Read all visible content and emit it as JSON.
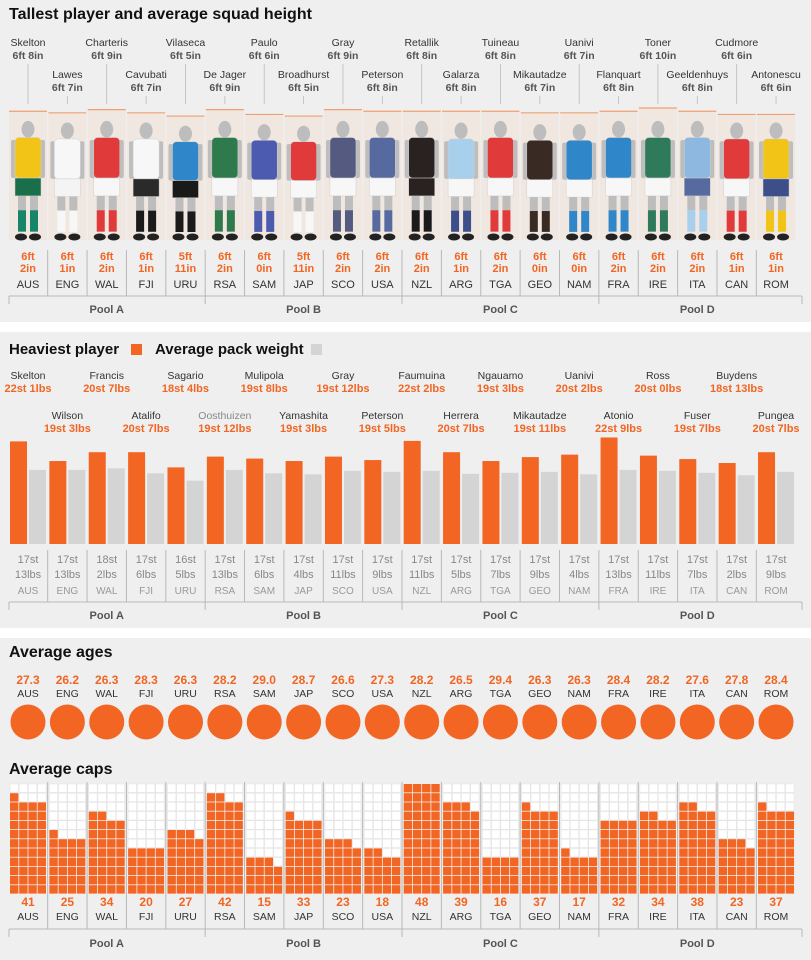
{
  "colors": {
    "orange": "#f26522",
    "grey": "#d4d4d4",
    "panel_bg": "#efefef",
    "silhouette": "#bdbdbd",
    "ref_line": "#f0a070"
  },
  "pools": [
    "Pool A",
    "Pool B",
    "Pool C",
    "Pool D"
  ],
  "height_section": {
    "title": "Tallest player and average squad height",
    "teams": [
      {
        "team": "AUS",
        "player": "Skelton",
        "player_height": "6ft 8in",
        "avg": [
          "6ft",
          "2in"
        ],
        "pool": 0,
        "shirt": "#f2c417",
        "shorts": "#1a6e4a",
        "socks": "#16856a"
      },
      {
        "team": "ENG",
        "player": "Lawes",
        "player_height": "6ft 7in",
        "avg": [
          "6ft",
          "1in"
        ],
        "pool": 0,
        "shirt": "#f7f7f7",
        "shorts": "#f4f4f4",
        "socks": "#f7f7f7"
      },
      {
        "team": "WAL",
        "player": "Charteris",
        "player_height": "6ft 9in",
        "avg": [
          "6ft",
          "2in"
        ],
        "pool": 0,
        "shirt": "#e03a3a",
        "shorts": "#f7f7f7",
        "socks": "#e03a3a"
      },
      {
        "team": "FJI",
        "player": "Cavubati",
        "player_height": "6ft 7in",
        "avg": [
          "6ft",
          "1in"
        ],
        "pool": 0,
        "shirt": "#f7f7f7",
        "shorts": "#2a2a2a",
        "socks": "#1a1a1a"
      },
      {
        "team": "URU",
        "player": "Vilaseca",
        "player_height": "6ft 5in",
        "avg": [
          "5ft",
          "11in"
        ],
        "pool": 0,
        "shirt": "#2f86c8",
        "shorts": "#1a1a1a",
        "socks": "#1a1a1a"
      },
      {
        "team": "RSA",
        "player": "De Jager",
        "player_height": "6ft 9in",
        "avg": [
          "6ft",
          "2in"
        ],
        "pool": 1,
        "shirt": "#2e7a4c",
        "shorts": "#f7f7f7",
        "socks": "#2e7a4c"
      },
      {
        "team": "SAM",
        "player": "Paulo",
        "player_height": "6ft 6in",
        "avg": [
          "6ft",
          "0in"
        ],
        "pool": 1,
        "shirt": "#4c5bb0",
        "shorts": "#f7f7f7",
        "socks": "#4c5bb0"
      },
      {
        "team": "JAP",
        "player": "Broadhurst",
        "player_height": "6ft 5in",
        "avg": [
          "5ft",
          "11in"
        ],
        "pool": 1,
        "shirt": "#e03a3a",
        "shorts": "#f7f7f7",
        "socks": "#f7f7f7"
      },
      {
        "team": "SCO",
        "player": "Gray",
        "player_height": "6ft 9in",
        "avg": [
          "6ft",
          "2in"
        ],
        "pool": 1,
        "shirt": "#545a80",
        "shorts": "#f7f7f7",
        "socks": "#545a80"
      },
      {
        "team": "USA",
        "player": "Peterson",
        "player_height": "6ft 8in",
        "avg": [
          "6ft",
          "2in"
        ],
        "pool": 1,
        "shirt": "#566aa0",
        "shorts": "#f7f7f7",
        "socks": "#566aa0"
      },
      {
        "team": "NZL",
        "player": "Retallik",
        "player_height": "6ft 8in",
        "avg": [
          "6ft",
          "2in"
        ],
        "pool": 2,
        "shirt": "#2a2220",
        "shorts": "#2a2220",
        "socks": "#1a1a1a"
      },
      {
        "team": "ARG",
        "player": "Galarza",
        "player_height": "6ft 8in",
        "avg": [
          "6ft",
          "1in"
        ],
        "pool": 2,
        "shirt": "#a8d0ec",
        "shorts": "#f7f7f7",
        "socks": "#3d4f8a"
      },
      {
        "team": "TGA",
        "player": "Tuineau",
        "player_height": "6ft 8in",
        "avg": [
          "6ft",
          "2in"
        ],
        "pool": 2,
        "shirt": "#e03a3a",
        "shorts": "#f7f7f7",
        "socks": "#e03a3a"
      },
      {
        "team": "GEO",
        "player": "Mikautadze",
        "player_height": "6ft 7in",
        "avg": [
          "6ft",
          "0in"
        ],
        "pool": 2,
        "shirt": "#3a2a24",
        "shorts": "#f7f7f7",
        "socks": "#3a2a24"
      },
      {
        "team": "NAM",
        "player": "Uanivi",
        "player_height": "6ft 7in",
        "avg": [
          "6ft",
          "0in"
        ],
        "pool": 2,
        "shirt": "#2f86c8",
        "shorts": "#f7f7f7",
        "socks": "#2f86c8"
      },
      {
        "team": "FRA",
        "player": "Flanquart",
        "player_height": "6ft 8in",
        "avg": [
          "6ft",
          "2in"
        ],
        "pool": 3,
        "shirt": "#2f86c8",
        "shorts": "#f7f7f7",
        "socks": "#2f86c8"
      },
      {
        "team": "IRE",
        "player": "Toner",
        "player_height": "6ft 10in",
        "avg": [
          "6ft",
          "2in"
        ],
        "pool": 3,
        "shirt": "#2e7a5a",
        "shorts": "#f7f7f7",
        "socks": "#2e7a5a"
      },
      {
        "team": "ITA",
        "player": "Geeldenhuys",
        "player_height": "6ft 8in",
        "avg": [
          "6ft",
          "2in"
        ],
        "pool": 3,
        "shirt": "#8fb8e0",
        "shorts": "#566aa0",
        "socks": "#a8d0ec"
      },
      {
        "team": "CAN",
        "player": "Cudmore",
        "player_height": "6ft 6in",
        "avg": [
          "6ft",
          "1in"
        ],
        "pool": 3,
        "shirt": "#e03a3a",
        "shorts": "#f7f7f7",
        "socks": "#e03a3a"
      },
      {
        "team": "ROM",
        "player": "Antonescu",
        "player_height": "6ft 6in",
        "avg": [
          "6ft",
          "1in"
        ],
        "pool": 3,
        "shirt": "#f2c417",
        "shorts": "#3d4f8a",
        "socks": "#f2c417"
      }
    ]
  },
  "weight_section": {
    "legend_heaviest": "Heaviest player",
    "legend_average": "Average pack weight",
    "teams": [
      {
        "team": "AUS",
        "player": "Skelton",
        "heaviest": "22st 1lbs",
        "avg": [
          "17st",
          "13lbs"
        ]
      },
      {
        "team": "ENG",
        "player": "Wilson",
        "heaviest": "19st 3lbs",
        "avg": [
          "17st",
          "13lbs"
        ]
      },
      {
        "team": "WAL",
        "player": "Francis",
        "heaviest": "20st 7lbs",
        "avg": [
          "18st",
          "2lbs"
        ]
      },
      {
        "team": "FJI",
        "player": "Atalifo",
        "heaviest": "20st 7lbs",
        "avg": [
          "17st",
          "6lbs"
        ]
      },
      {
        "team": "URU",
        "player": "Sagario",
        "heaviest": "18st 4lbs",
        "avg": [
          "16st",
          "5lbs"
        ]
      },
      {
        "team": "RSA",
        "player": "Oosthuizen",
        "heaviest": "19st 12lbs",
        "avg": [
          "17st",
          "13lbs"
        ]
      },
      {
        "team": "SAM",
        "player": "Mulipola",
        "heaviest": "19st 8lbs",
        "avg": [
          "17st",
          "6lbs"
        ]
      },
      {
        "team": "JAP",
        "player": "Yamashita",
        "heaviest": "19st 3lbs",
        "avg": [
          "17st",
          "4lbs"
        ]
      },
      {
        "team": "SCO",
        "player": "Gray",
        "heaviest": "19st 12lbs",
        "avg": [
          "17st",
          "11lbs"
        ]
      },
      {
        "team": "USA",
        "player": "Peterson",
        "heaviest": "19st 5lbs",
        "avg": [
          "17st",
          "9lbs"
        ]
      },
      {
        "team": "NZL",
        "player": "Faumuina",
        "heaviest": "22st 2lbs",
        "avg": [
          "17st",
          "11lbs"
        ]
      },
      {
        "team": "ARG",
        "player": "Herrera",
        "heaviest": "20st 7lbs",
        "avg": [
          "17st",
          "5lbs"
        ]
      },
      {
        "team": "TGA",
        "player": "Ngauamo",
        "heaviest": "19st 3lbs",
        "avg": [
          "17st",
          "7lbs"
        ]
      },
      {
        "team": "GEO",
        "player": "Mikautadze",
        "heaviest": "19st 11lbs",
        "avg": [
          "17st",
          "9lbs"
        ]
      },
      {
        "team": "NAM",
        "player": "Uanivi",
        "heaviest": "20st 2lbs",
        "avg": [
          "17st",
          "4lbs"
        ]
      },
      {
        "team": "FRA",
        "player": "Atonio",
        "heaviest": "22st 9lbs",
        "avg": [
          "17st",
          "13lbs"
        ]
      },
      {
        "team": "IRE",
        "player": "Ross",
        "heaviest": "20st 0lbs",
        "avg": [
          "17st",
          "11lbs"
        ]
      },
      {
        "team": "ITA",
        "player": "Fuser",
        "heaviest": "19st 7lbs",
        "avg": [
          "17st",
          "7lbs"
        ]
      },
      {
        "team": "CAN",
        "player": "Buydens",
        "heaviest": "18st 13lbs",
        "avg": [
          "17st",
          "2lbs"
        ]
      },
      {
        "team": "ROM",
        "player": "Pungea",
        "heaviest": "20st 7lbs",
        "avg": [
          "17st",
          "9lbs"
        ]
      }
    ]
  },
  "ages_section": {
    "title": "Average ages",
    "values": [
      "27.3",
      "26.2",
      "26.3",
      "28.3",
      "26.3",
      "28.2",
      "29.0",
      "28.7",
      "26.6",
      "27.3",
      "28.2",
      "26.5",
      "29.4",
      "26.3",
      "26.3",
      "28.4",
      "28.2",
      "27.6",
      "27.8",
      "28.4"
    ]
  },
  "caps_section": {
    "title": "Average caps",
    "values": [
      41,
      25,
      34,
      20,
      27,
      42,
      15,
      33,
      23,
      18,
      48,
      39,
      16,
      37,
      17,
      32,
      34,
      38,
      23,
      37
    ]
  },
  "chart_data": [
    {
      "type": "bar",
      "title": "Tallest player and average squad height",
      "categories": [
        "AUS",
        "ENG",
        "WAL",
        "FJI",
        "URU",
        "RSA",
        "SAM",
        "JAP",
        "SCO",
        "USA",
        "NZL",
        "ARG",
        "TGA",
        "GEO",
        "NAM",
        "FRA",
        "IRE",
        "ITA",
        "CAN",
        "ROM"
      ],
      "series": [
        {
          "name": "Tallest player (in)",
          "values": [
            80,
            79,
            81,
            79,
            77,
            81,
            78,
            77,
            81,
            80,
            80,
            80,
            80,
            79,
            79,
            80,
            82,
            80,
            78,
            78
          ]
        },
        {
          "name": "Average squad height (in)",
          "values": [
            74,
            73,
            74,
            73,
            71,
            74,
            72,
            71,
            74,
            74,
            74,
            73,
            74,
            72,
            72,
            74,
            74,
            74,
            73,
            73
          ]
        }
      ]
    },
    {
      "type": "bar",
      "categories": [
        "AUS",
        "ENG",
        "WAL",
        "FJI",
        "URU",
        "RSA",
        "SAM",
        "JAP",
        "SCO",
        "USA",
        "NZL",
        "ARG",
        "TGA",
        "GEO",
        "NAM",
        "FRA",
        "IRE",
        "ITA",
        "CAN",
        "ROM"
      ],
      "series": [
        {
          "name": "Heaviest player",
          "values": [
            309,
            269,
            287,
            287,
            256,
            278,
            274,
            269,
            278,
            271,
            310,
            287,
            269,
            277,
            282,
            317,
            280,
            273,
            265,
            287
          ]
        },
        {
          "name": "Average pack weight",
          "values": [
            251,
            251,
            254,
            244,
            229,
            251,
            244,
            242,
            249,
            247,
            249,
            243,
            245,
            247,
            242,
            251,
            249,
            245,
            240,
            247
          ]
        }
      ]
    },
    {
      "type": "scatter",
      "title": "Average ages",
      "categories": [
        "AUS",
        "ENG",
        "WAL",
        "FJI",
        "URU",
        "RSA",
        "SAM",
        "JAP",
        "SCO",
        "USA",
        "NZL",
        "ARG",
        "TGA",
        "GEO",
        "NAM",
        "FRA",
        "IRE",
        "ITA",
        "CAN",
        "ROM"
      ],
      "values": [
        27.3,
        26.2,
        26.3,
        28.3,
        26.3,
        28.2,
        29.0,
        28.7,
        26.6,
        27.3,
        28.2,
        26.5,
        29.4,
        26.3,
        26.3,
        28.4,
        28.2,
        27.6,
        27.8,
        28.4
      ]
    },
    {
      "type": "bar",
      "title": "Average caps",
      "categories": [
        "AUS",
        "ENG",
        "WAL",
        "FJI",
        "URU",
        "RSA",
        "SAM",
        "JAP",
        "SCO",
        "USA",
        "NZL",
        "ARG",
        "TGA",
        "GEO",
        "NAM",
        "FRA",
        "IRE",
        "ITA",
        "CAN",
        "ROM"
      ],
      "values": [
        41,
        25,
        34,
        20,
        27,
        42,
        15,
        33,
        23,
        18,
        48,
        39,
        16,
        37,
        17,
        32,
        34,
        38,
        23,
        37
      ]
    }
  ]
}
